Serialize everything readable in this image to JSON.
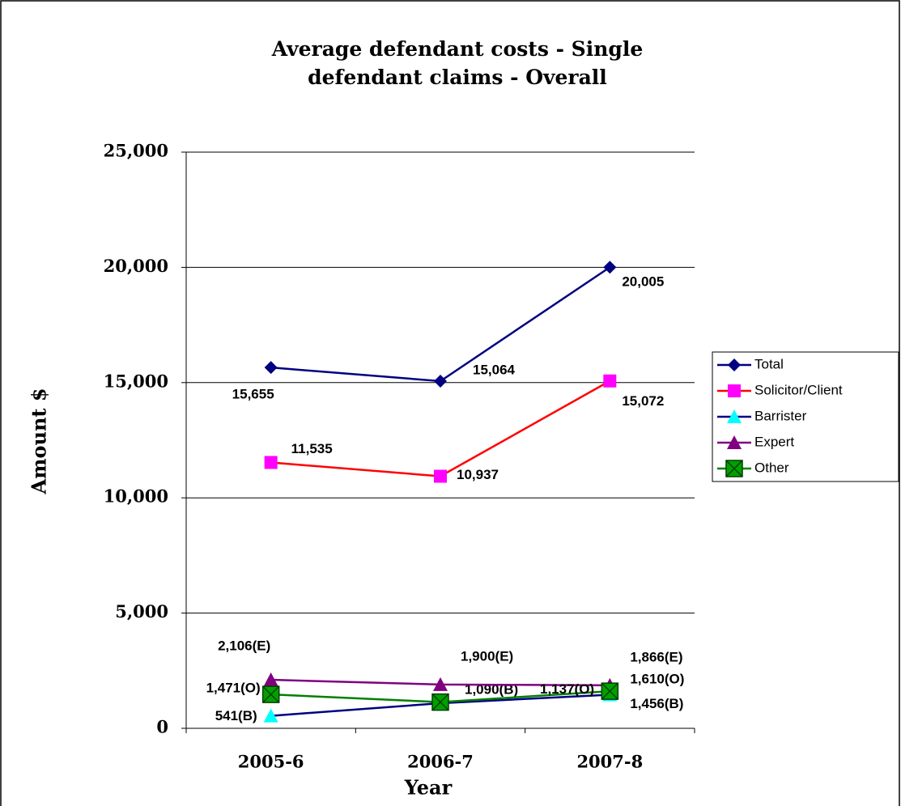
{
  "chart_data": {
    "type": "line",
    "title": "Average defendant costs - Single defendant claims - Overall",
    "x_label": "Year",
    "y_label": "Amount $",
    "categories": [
      "2005-6",
      "2006-7",
      "2007-8"
    ],
    "ylim": [
      0,
      25000
    ],
    "yticks": [
      0,
      {
        "value": 5000,
        "label": "5,000"
      },
      {
        "value": 10000,
        "label": "10,000"
      },
      {
        "value": 15000,
        "label": "15,000"
      },
      {
        "value": 20000,
        "label": "20,000"
      },
      {
        "value": 25000,
        "label": "25,000"
      }
    ],
    "grid": true,
    "legend": "right",
    "series": [
      {
        "name": "Total",
        "color": "#000080",
        "marker_color": "#000080",
        "marker": "diamond",
        "values": [
          15655,
          15064,
          20005
        ],
        "value_labels": [
          "15,655",
          "15,064",
          "20,005"
        ]
      },
      {
        "name": "Solicitor/Client",
        "color": "#ff0000",
        "marker_color": "#ff00ff",
        "marker": "square",
        "values": [
          11535,
          10937,
          15072
        ],
        "value_labels": [
          "11,535",
          "10,937",
          "15,072"
        ]
      },
      {
        "name": "Barrister",
        "color": "#000080",
        "marker_color": "#00ffff",
        "marker": "triangle",
        "values": [
          541,
          1090,
          1456
        ],
        "value_labels": [
          "541(B)",
          "1,090(B)",
          "1,456(B)"
        ]
      },
      {
        "name": "Expert",
        "color": "#800080",
        "marker_color": "#800080",
        "marker": "triangle",
        "values": [
          2106,
          1900,
          1866
        ],
        "value_labels": [
          "2,106(E)",
          "1,900(E)",
          "1,866(E)"
        ]
      },
      {
        "name": "Other",
        "color": "#008000",
        "marker_color": "#00a000",
        "marker": "xsquare",
        "values": [
          1471,
          1137,
          1610
        ],
        "value_labels": [
          "1,471(O)",
          "1,137(O)",
          "1,610(O)"
        ]
      }
    ]
  }
}
